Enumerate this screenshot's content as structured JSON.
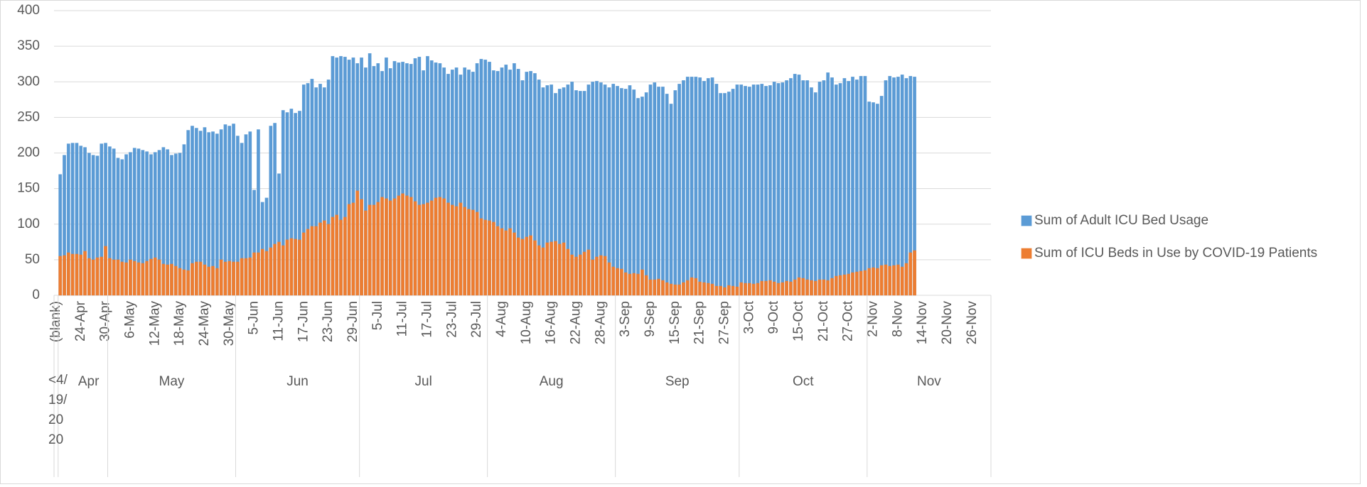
{
  "chart_data": {
    "type": "bar",
    "categories": [
      "(blank)",
      null,
      null,
      null,
      null,
      null,
      "24-Apr",
      null,
      null,
      null,
      null,
      null,
      "30-Apr",
      null,
      null,
      null,
      null,
      null,
      "6-May",
      null,
      null,
      null,
      null,
      null,
      "12-May",
      null,
      null,
      null,
      null,
      null,
      "18-May",
      null,
      null,
      null,
      null,
      null,
      "24-May",
      null,
      null,
      null,
      null,
      null,
      "30-May",
      null,
      null,
      null,
      null,
      null,
      "5-Jun",
      null,
      null,
      null,
      null,
      null,
      "11-Jun",
      null,
      null,
      null,
      null,
      null,
      "17-Jun",
      null,
      null,
      null,
      null,
      null,
      "23-Jun",
      null,
      null,
      null,
      null,
      null,
      "29-Jun",
      null,
      null,
      null,
      null,
      null,
      "5-Jul",
      null,
      null,
      null,
      null,
      null,
      "11-Jul",
      null,
      null,
      null,
      null,
      null,
      "17-Jul",
      null,
      null,
      null,
      null,
      null,
      "23-Jul",
      null,
      null,
      null,
      null,
      null,
      "29-Jul",
      null,
      null,
      null,
      null,
      null,
      "4-Aug",
      null,
      null,
      null,
      null,
      null,
      "10-Aug",
      null,
      null,
      null,
      null,
      null,
      "16-Aug",
      null,
      null,
      null,
      null,
      null,
      "22-Aug",
      null,
      null,
      null,
      null,
      null,
      "28-Aug",
      null,
      null,
      null,
      null,
      null,
      "3-Sep",
      null,
      null,
      null,
      null,
      null,
      "9-Sep",
      null,
      null,
      null,
      null,
      null,
      "15-Sep",
      null,
      null,
      null,
      null,
      null,
      "21-Sep",
      null,
      null,
      null,
      null,
      null,
      "27-Sep",
      null,
      null,
      null,
      null,
      null,
      "3-Oct",
      null,
      null,
      null,
      null,
      null,
      "9-Oct",
      null,
      null,
      null,
      null,
      null,
      "15-Oct",
      null,
      null,
      null,
      null,
      null,
      "21-Oct",
      null,
      null,
      null,
      null,
      null,
      "27-Oct",
      null,
      null,
      null,
      null,
      null,
      "2-Nov",
      null,
      null,
      null,
      null,
      null,
      "8-Nov",
      null,
      null,
      null,
      null,
      null,
      "14-Nov",
      null,
      null,
      null,
      null,
      null,
      "20-Nov",
      null,
      null,
      null,
      null,
      null,
      "26-Nov",
      null,
      null,
      null,
      null
    ],
    "groups": [
      {
        "label": "<4/19/2020",
        "count": 1
      },
      {
        "label": "Apr",
        "count": 12
      },
      {
        "label": "May",
        "count": 31
      },
      {
        "label": "Jun",
        "count": 30
      },
      {
        "label": "Jul",
        "count": 31
      },
      {
        "label": "Aug",
        "count": 31
      },
      {
        "label": "Sep",
        "count": 30
      },
      {
        "label": "Oct",
        "count": 31
      },
      {
        "label": "Nov",
        "count": 30
      }
    ],
    "series": [
      {
        "name": "Sum of Adult ICU Bed Usage",
        "color": "#5b9bd5",
        "values": [
          null,
          170,
          197,
          213,
          214,
          214,
          210,
          208,
          200,
          197,
          196,
          213,
          214,
          209,
          206,
          193,
          191,
          198,
          201,
          207,
          206,
          204,
          202,
          198,
          201,
          204,
          208,
          205,
          197,
          199,
          200,
          212,
          232,
          238,
          235,
          231,
          236,
          229,
          230,
          227,
          233,
          240,
          238,
          241,
          224,
          214,
          226,
          230,
          148,
          233,
          131,
          137,
          238,
          242,
          171,
          260,
          257,
          262,
          256,
          259,
          296,
          298,
          304,
          292,
          297,
          292,
          303,
          336,
          334,
          336,
          335,
          331,
          334,
          326,
          334,
          320,
          340,
          322,
          326,
          315,
          334,
          319,
          329,
          327,
          328,
          326,
          325,
          333,
          335,
          316,
          336,
          330,
          327,
          326,
          320,
          311,
          317,
          320,
          310,
          320,
          317,
          314,
          326,
          332,
          331,
          328,
          316,
          315,
          320,
          324,
          317,
          326,
          318,
          302,
          314,
          315,
          312,
          303,
          292,
          295,
          296,
          284,
          290,
          292,
          296,
          300,
          288,
          287,
          287,
          296,
          300,
          301,
          299,
          296,
          292,
          297,
          294,
          291,
          290,
          295,
          289,
          277,
          279,
          285,
          296,
          299,
          293,
          293,
          283,
          269,
          288,
          297,
          302,
          307,
          307,
          307,
          306,
          301,
          305,
          306,
          297,
          284,
          284,
          286,
          290,
          296,
          296,
          294,
          293,
          296,
          296,
          297,
          294,
          295,
          300,
          298,
          299,
          302,
          305,
          311,
          310,
          302,
          302,
          292,
          285,
          300,
          302,
          313,
          306,
          296,
          298,
          305,
          301,
          307,
          303,
          308,
          308,
          272,
          271,
          269,
          280,
          302,
          308,
          306,
          307,
          310,
          305,
          308,
          307,
          null,
          null,
          null,
          null,
          null,
          null,
          null,
          null,
          null,
          null,
          null,
          null,
          null,
          null,
          null,
          null,
          null,
          null
        ]
      },
      {
        "name": "Sum of ICU Beds in Use by COVID-19 Patients",
        "color": "#ed7d31",
        "values": [
          null,
          55,
          56,
          60,
          58,
          58,
          57,
          62,
          52,
          50,
          53,
          54,
          69,
          52,
          50,
          50,
          47,
          46,
          50,
          48,
          46,
          45,
          48,
          51,
          53,
          50,
          44,
          43,
          44,
          41,
          38,
          36,
          35,
          45,
          47,
          47,
          43,
          40,
          41,
          38,
          50,
          47,
          48,
          47,
          47,
          52,
          52,
          53,
          60,
          60,
          65,
          62,
          67,
          72,
          75,
          70,
          78,
          80,
          79,
          78,
          88,
          93,
          97,
          97,
          102,
          105,
          100,
          110,
          113,
          106,
          110,
          128,
          130,
          147,
          135,
          119,
          127,
          127,
          131,
          138,
          136,
          133,
          136,
          140,
          143,
          140,
          138,
          132,
          127,
          128,
          130,
          133,
          137,
          138,
          136,
          130,
          127,
          125,
          130,
          124,
          121,
          120,
          117,
          108,
          106,
          105,
          103,
          97,
          94,
          91,
          94,
          88,
          81,
          79,
          82,
          84,
          77,
          70,
          67,
          74,
          75,
          76,
          72,
          74,
          65,
          57,
          54,
          57,
          61,
          64,
          50,
          54,
          56,
          55,
          46,
          40,
          38,
          37,
          32,
          30,
          31,
          30,
          36,
          28,
          22,
          22,
          23,
          21,
          18,
          16,
          15,
          15,
          18,
          21,
          25,
          24,
          19,
          18,
          17,
          16,
          13,
          13,
          11,
          14,
          13,
          12,
          18,
          17,
          17,
          16,
          17,
          20,
          20,
          21,
          19,
          17,
          18,
          20,
          19,
          22,
          25,
          24,
          22,
          21,
          20,
          22,
          22,
          21,
          24,
          27,
          28,
          29,
          30,
          32,
          33,
          34,
          35,
          38,
          39,
          38,
          42,
          43,
          41,
          42,
          43,
          40,
          45,
          60,
          63,
          null,
          null,
          null,
          null,
          null,
          null,
          null,
          null,
          null,
          null,
          null,
          null,
          null,
          null,
          null,
          null,
          null,
          null
        ]
      }
    ],
    "ylim": [
      0,
      400
    ],
    "yticks": [
      0,
      50,
      100,
      150,
      200,
      250,
      300,
      350,
      400
    ],
    "grid": true,
    "legend": "right"
  }
}
